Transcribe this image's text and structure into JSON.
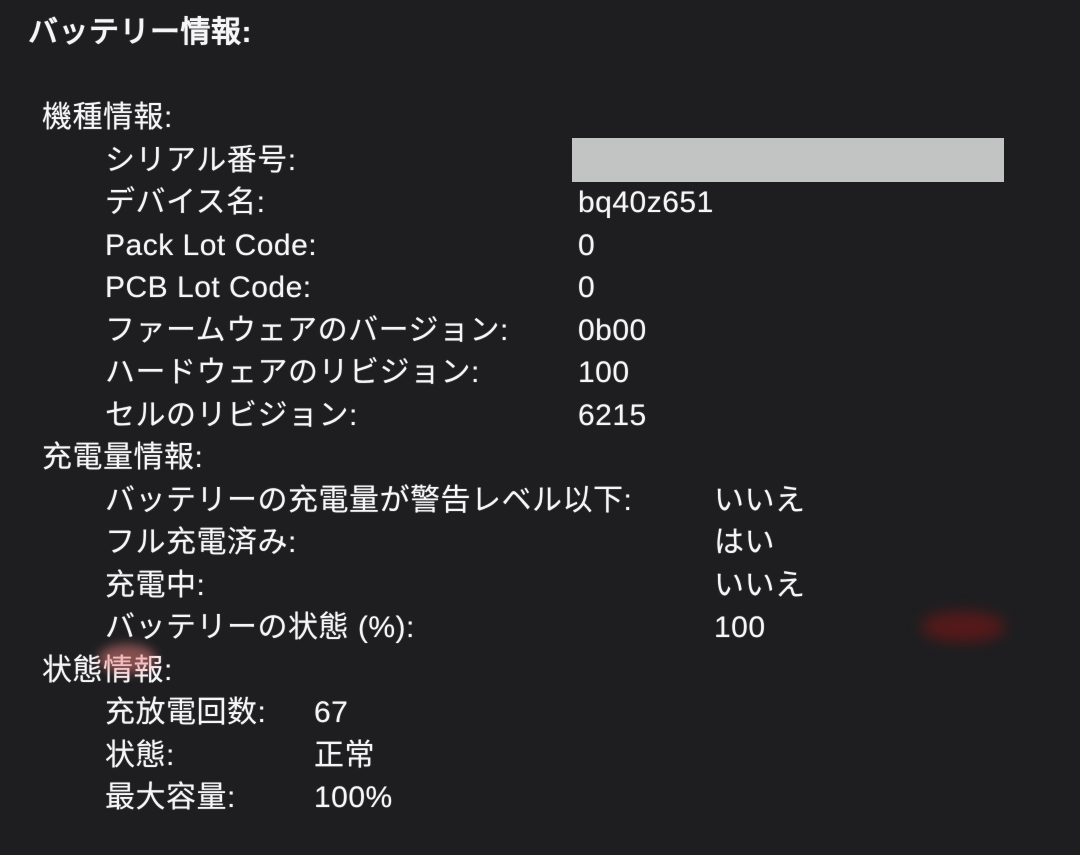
{
  "title": "バッテリー情報:",
  "sections": [
    {
      "heading": "機種情報:",
      "rows": [
        {
          "label": "シリアル番号:",
          "value": "",
          "redacted": true
        },
        {
          "label": "デバイス名:",
          "value": "bq40z651"
        },
        {
          "label": "Pack Lot Code:",
          "value": "0"
        },
        {
          "label": "PCB Lot Code:",
          "value": "0"
        },
        {
          "label": "ファームウェアのバージョン:",
          "value": "0b00"
        },
        {
          "label": "ハードウェアのリビジョン:",
          "value": "100"
        },
        {
          "label": "セルのリビジョン:",
          "value": "6215"
        }
      ]
    },
    {
      "heading": "充電量情報:",
      "rows": [
        {
          "label": "バッテリーの充電量が警告レベル以下:",
          "value": "いいえ"
        },
        {
          "label": "フル充電済み:",
          "value": "はい"
        },
        {
          "label": "充電中:",
          "value": "いいえ"
        },
        {
          "label": "バッテリーの状態 (%):",
          "value": "100"
        }
      ]
    },
    {
      "heading": "状態情報:",
      "rows": [
        {
          "label": "充放電回数:",
          "value": "67"
        },
        {
          "label": "状態:",
          "value": "正常"
        },
        {
          "label": "最大容量:",
          "value": "100%"
        }
      ]
    }
  ],
  "colors": {
    "background": "#1e1e20",
    "text": "#f5f5f7",
    "redaction_box": "#c2c3c3"
  }
}
